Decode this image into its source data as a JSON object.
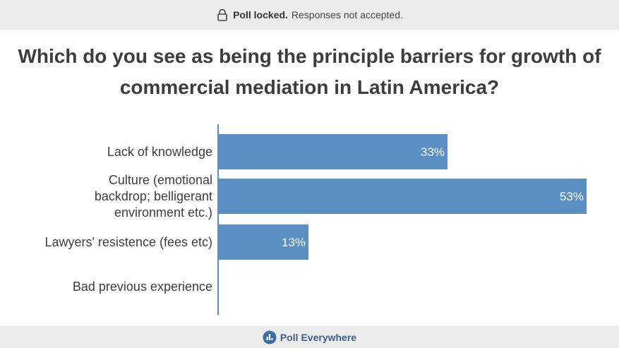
{
  "banner": {
    "status": "Poll locked.",
    "message": "Responses not accepted.",
    "icon": "lock-icon"
  },
  "footer": {
    "brand": "Poll Everywhere",
    "icon": "poll-everywhere-logo-icon"
  },
  "colors": {
    "bar": "#5b8fc4",
    "axis": "#5b8fc4",
    "label": "#3d3d3d",
    "value_label": "#ffffff"
  },
  "chart_data": {
    "type": "bar",
    "orientation": "horizontal",
    "title": "Which do you see as being the principle barriers for growth of commercial mediation in Latin America?",
    "categories": [
      [
        "Lack of knowledge"
      ],
      [
        "Culture (emotional",
        "backdrop; belligerant",
        "environment etc.)"
      ],
      [
        "Lawyers' resistence (fees etc)"
      ],
      [
        "Bad previous experience"
      ]
    ],
    "values": [
      33,
      53,
      13,
      0
    ],
    "value_labels": [
      "33%",
      "53%",
      "13%",
      ""
    ],
    "unit": "%",
    "xlim": [
      0,
      53
    ],
    "grid": false,
    "legend": "none"
  }
}
